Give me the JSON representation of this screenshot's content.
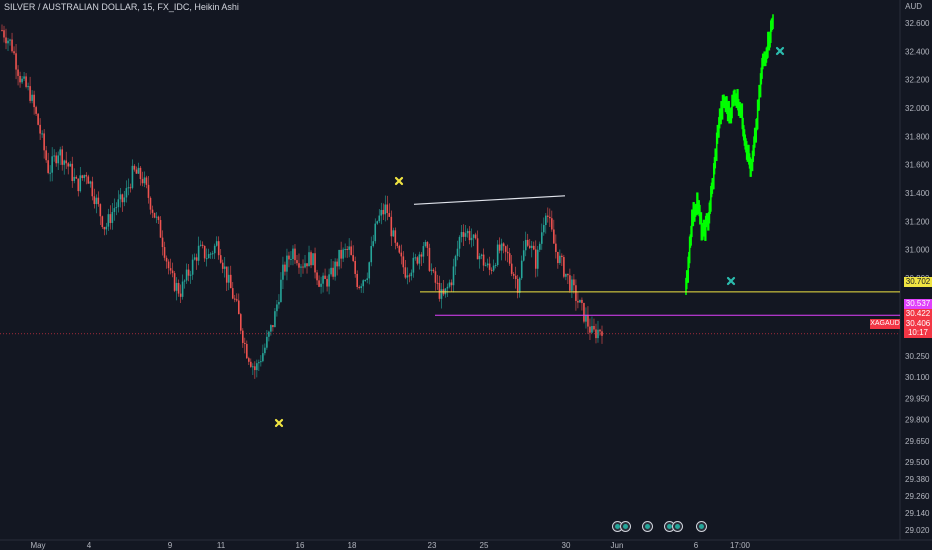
{
  "legend": {
    "title": "SILVER / AUSTRALIAN DOLLAR, 15, FX_IDC, Heikin Ashi"
  },
  "axis": {
    "unit": "AUD",
    "y_ticks": [
      {
        "v": 32.6,
        "label": "32.600"
      },
      {
        "v": 32.4,
        "label": "32.400"
      },
      {
        "v": 32.2,
        "label": "32.200"
      },
      {
        "v": 32.0,
        "label": "32.000"
      },
      {
        "v": 31.8,
        "label": "31.800"
      },
      {
        "v": 31.6,
        "label": "31.600"
      },
      {
        "v": 31.4,
        "label": "31.400"
      },
      {
        "v": 31.2,
        "label": "31.200"
      },
      {
        "v": 31.0,
        "label": "31.000"
      },
      {
        "v": 30.8,
        "label": "30.800"
      },
      {
        "v": 30.6,
        "label": "30.600"
      },
      {
        "v": 30.25,
        "label": "30.250"
      },
      {
        "v": 30.1,
        "label": "30.100"
      },
      {
        "v": 29.95,
        "label": "29.950"
      },
      {
        "v": 29.8,
        "label": "29.800"
      },
      {
        "v": 29.65,
        "label": "29.650"
      },
      {
        "v": 29.5,
        "label": "29.500"
      },
      {
        "v": 29.38,
        "label": "29.380"
      },
      {
        "v": 29.26,
        "label": "29.260"
      },
      {
        "v": 29.14,
        "label": "29.140"
      },
      {
        "v": 29.02,
        "label": "29.020"
      }
    ],
    "x_ticks": [
      "May",
      "4",
      "9",
      "11",
      "16",
      "18",
      "23",
      "25",
      "30",
      "Jun",
      "6",
      "17:00"
    ]
  },
  "price_labels": {
    "yellow_line": "30.702",
    "magenta_line": "30.537",
    "red_upper": "30.422",
    "current": "30.406",
    "countdown": "10:17"
  },
  "symbol_tag": "XAGAUD",
  "colors": {
    "background": "#131722",
    "up": "#26a69a",
    "down": "#ef5350",
    "projection": "#00ff00",
    "yellow": "#f0e442",
    "magenta": "#e040fb",
    "current": "#f23645"
  },
  "icons": [
    "yellow-x-marker-icon",
    "yellow-x-marker-icon",
    "teal-x-marker-icon",
    "teal-x-marker-icon"
  ],
  "chart_data": {
    "type": "candlestick",
    "series": [
      {
        "name": "SILVER / AUSTRALIAN DOLLAR",
        "values": [
          32.55,
          32.45,
          32.2,
          32.1,
          31.85,
          31.55,
          31.7,
          31.6,
          31.45,
          31.55,
          31.35,
          31.15,
          31.3,
          31.35,
          31.55,
          31.5,
          31.3,
          31.1,
          30.8,
          30.7,
          30.85,
          31.0,
          30.95,
          31.05,
          30.8,
          30.6,
          30.3,
          30.15,
          30.3,
          30.5,
          30.85,
          31.0,
          30.9,
          30.95,
          30.75,
          30.8,
          30.95,
          31.0,
          30.75,
          30.85,
          31.2,
          31.3,
          31.0,
          30.85,
          30.9,
          31.05,
          30.8,
          30.65,
          30.8,
          31.15,
          31.1,
          30.95,
          30.85,
          31.0,
          30.95,
          30.75,
          31.1,
          30.9,
          31.3,
          31.0,
          30.85,
          30.7,
          30.55,
          30.4,
          30.45
        ]
      },
      {
        "name": "Projection",
        "values": [
          30.72,
          31.2,
          31.35,
          31.1,
          31.2,
          31.5,
          31.9,
          32.05,
          31.95,
          32.1,
          32.0,
          31.75,
          31.55,
          31.9,
          32.3,
          32.45,
          32.62
        ]
      }
    ],
    "ylim": [
      28.95,
      32.72
    ],
    "annotations": {
      "yellow_level": 30.702,
      "magenta_level": 30.537,
      "current_price": 30.406,
      "resistance_line": [
        31.32,
        31.38
      ]
    }
  }
}
